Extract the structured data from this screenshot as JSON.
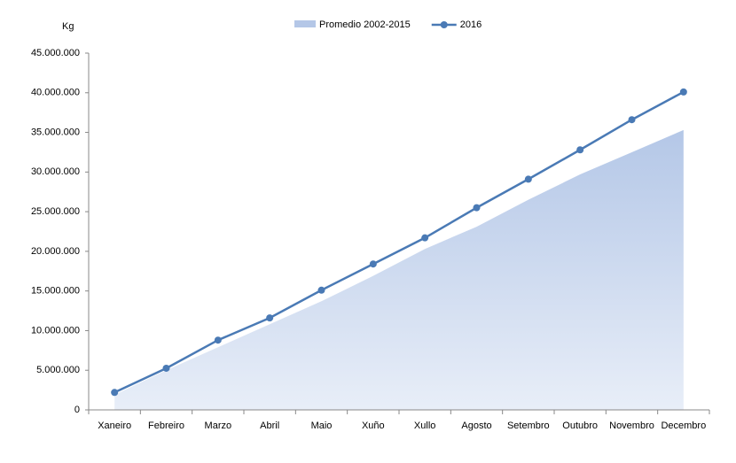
{
  "chart_data": {
    "type": "line-area",
    "y_unit": "Kg",
    "categories": [
      "Xaneiro",
      "Febreiro",
      "Marzo",
      "Abril",
      "Maio",
      "Xuño",
      "Xullo",
      "Agosto",
      "Setembro",
      "Outubro",
      "Novembro",
      "Decembro"
    ],
    "series": [
      {
        "name": "Promedio 2002-2015",
        "kind": "area",
        "color": "#b4c7e7",
        "values": [
          1900000,
          5000000,
          7900000,
          10800000,
          13700000,
          16900000,
          20300000,
          23100000,
          26500000,
          29700000,
          32500000,
          35300000
        ]
      },
      {
        "name": "2016",
        "kind": "line",
        "color": "#4a7ab5",
        "values": [
          2200000,
          5250000,
          8800000,
          11600000,
          15100000,
          18400000,
          21700000,
          25500000,
          29100000,
          32800000,
          36600000,
          40100000
        ]
      }
    ],
    "ylim": [
      0,
      45000000
    ],
    "yticks": [
      0,
      {
        "value": 5000000,
        "label": "5.000.000"
      },
      {
        "value": 10000000,
        "label": "10.000.000"
      },
      {
        "value": 15000000,
        "label": "15.000.000"
      },
      {
        "value": 20000000,
        "label": "20.000.000"
      },
      {
        "value": 25000000,
        "label": "25.000.000"
      },
      {
        "value": 30000000,
        "label": "30.000.000"
      },
      {
        "value": 35000000,
        "label": "35.000.000"
      },
      {
        "value": 40000000,
        "label": "40.000.000"
      },
      {
        "value": 45000000,
        "label": "45.000.000"
      }
    ],
    "legend": "top"
  }
}
